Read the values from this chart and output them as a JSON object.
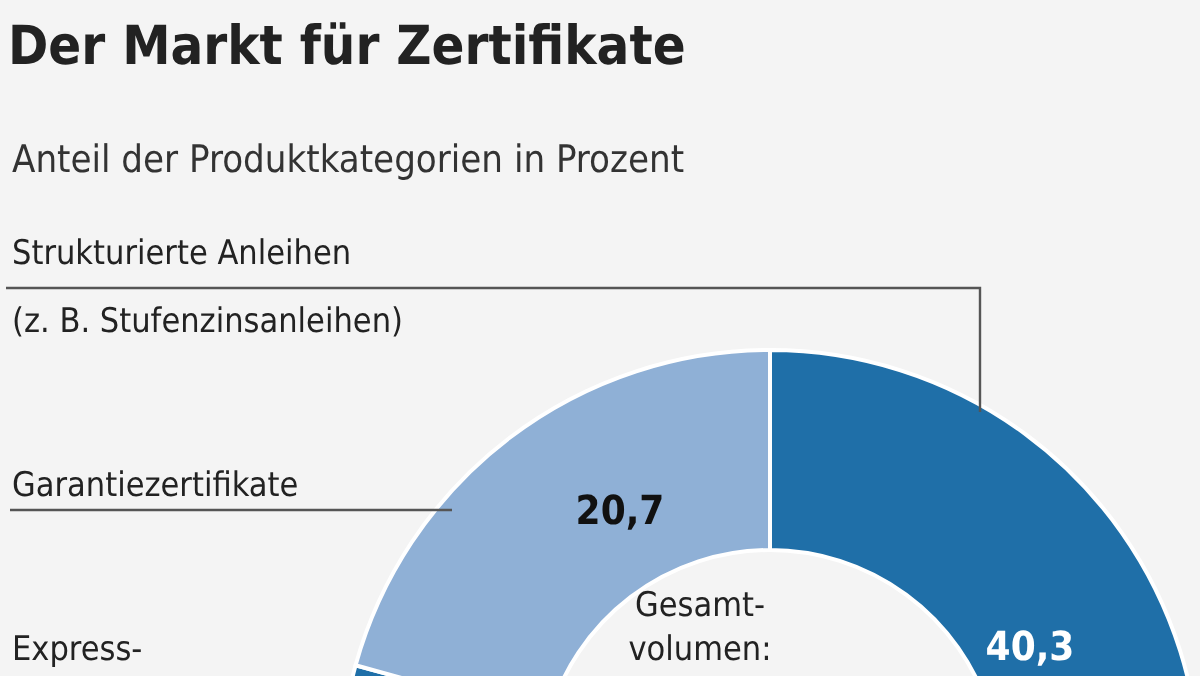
{
  "chart_data": {
    "type": "donut",
    "title": "Der Markt für Zertifikate",
    "subtitle": "Anteil der Produktkategorien in Prozent",
    "categories": [
      "Strukturierte Anleihen\n(z. B. Stufenzinsanleihen)",
      "Express-",
      "Garantiezertifikate"
    ],
    "values": [
      40.3,
      39.0,
      20.7
    ],
    "colors": [
      "#1f6fa8",
      "#1f6fa8",
      "#8fb0d6"
    ],
    "value_labels": [
      "40,3",
      null,
      "20,7"
    ],
    "annotations": [
      "Gesamt-\nvolumen:"
    ],
    "legend": false
  }
}
